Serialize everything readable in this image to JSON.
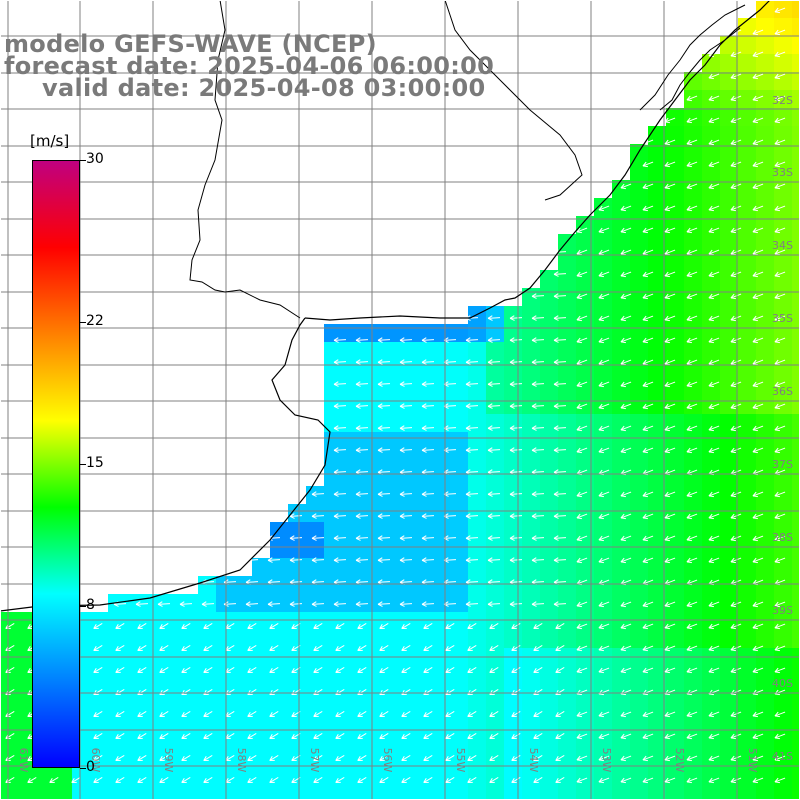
{
  "title": {
    "model": "modelo GEFS-WAVE (NCEP)",
    "forecast": "forecast date: 2025-04-06 06:00:00",
    "valid": "valid date: 2025-04-08 03:00:00"
  },
  "colorbar": {
    "unit": "[m/s]",
    "min": 0,
    "max": 30,
    "ticks": [
      {
        "value": 30,
        "label": "30"
      },
      {
        "value": 22,
        "label": "22"
      },
      {
        "value": 15,
        "label": "15"
      },
      {
        "value": 8,
        "label": "8"
      },
      {
        "value": 0,
        "label": "0"
      }
    ],
    "stops": [
      "#0000ff",
      "#0080ff",
      "#00ffff",
      "#00ff00",
      "#ffff00",
      "#ff8000",
      "#ff0000",
      "#c00080"
    ]
  },
  "lon_labels": [
    "61W",
    "60W",
    "59W",
    "58W",
    "57W",
    "56W",
    "55W",
    "54W",
    "53W",
    "52W",
    "51W"
  ],
  "lat_labels": [
    "32S",
    "33S",
    "34S",
    "35S",
    "36S",
    "37S",
    "38S",
    "39S",
    "40S",
    "41S"
  ],
  "colors": {
    "land": "#ffffff",
    "grid": "#808080",
    "coast": "#000000",
    "arrow": "#ffffff",
    "title": "#7a7a7a"
  }
}
